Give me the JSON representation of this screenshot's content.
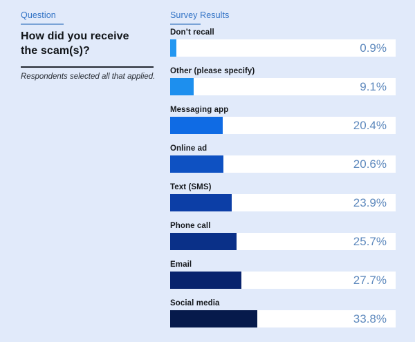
{
  "page": {
    "background_color": "#e1eafa"
  },
  "question": {
    "eyebrow": "Question",
    "title": "How did you receive the scam(s)?",
    "note": "Respondents selected all that applied."
  },
  "results": {
    "eyebrow": "Survey Results"
  },
  "colors": {
    "accent_blue": "#3273c5",
    "eyebrow_underline": "#7aa3d6",
    "heading_text": "#101418",
    "label_text": "#15181c",
    "value_text": "#5e89bd",
    "divider": "#222831",
    "bar_track": "#ffffff"
  },
  "chart_data": {
    "type": "bar",
    "orientation": "horizontal",
    "title": "How did you receive the scam(s)?",
    "xlabel": "",
    "ylabel": "",
    "grid": false,
    "legend": false,
    "xlim": [
      0,
      87.5
    ],
    "categories": [
      "Don’t recall",
      "Other (please specify)",
      "Messaging app",
      "Online ad",
      "Text (SMS)",
      "Phone call",
      "Email",
      "Social media"
    ],
    "values": [
      0.9,
      9.1,
      20.4,
      20.6,
      23.9,
      25.7,
      27.7,
      33.8
    ],
    "value_labels": [
      "0.9%",
      "9.1%",
      "20.4%",
      "20.6%",
      "23.9%",
      "25.7%",
      "27.7%",
      "33.8%"
    ],
    "bar_colors": [
      "#2397f1",
      "#1d8fee",
      "#0f6be4",
      "#0e51c2",
      "#0c3ea6",
      "#0a3088",
      "#08236d",
      "#061a4b"
    ]
  }
}
